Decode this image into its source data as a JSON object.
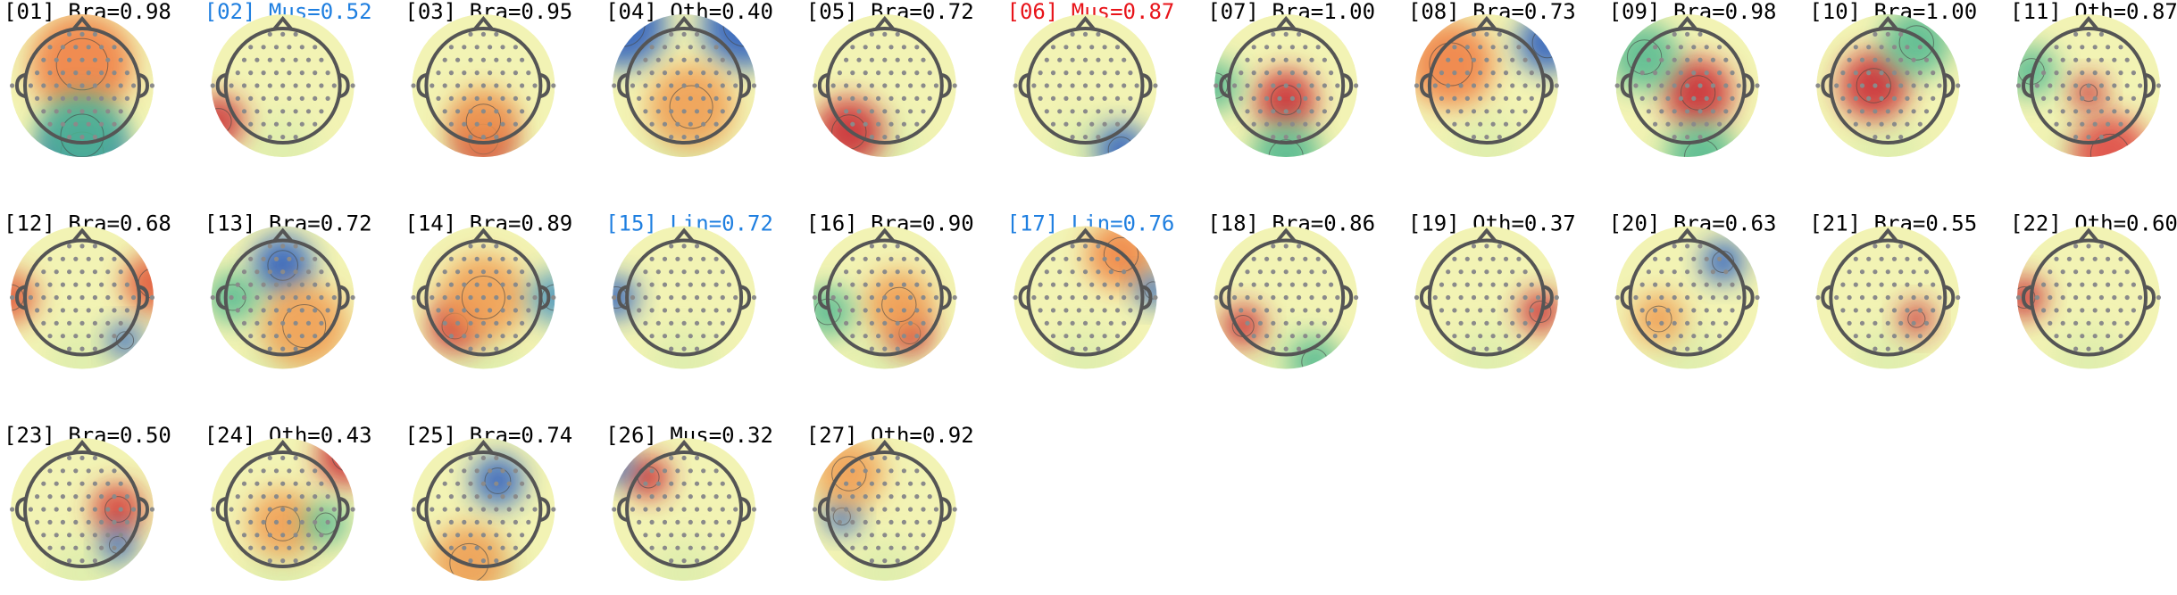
{
  "components": [
    {
      "label": "[01] Bra=0.98",
      "color": "#000000"
    },
    {
      "label": "[02] Mus=0.52",
      "color": "#1f7fe0"
    },
    {
      "label": "[03] Bra=0.95",
      "color": "#000000"
    },
    {
      "label": "[04] Oth=0.40",
      "color": "#000000"
    },
    {
      "label": "[05] Bra=0.72",
      "color": "#000000"
    },
    {
      "label": "[06] Mus=0.87",
      "color": "#e8141a"
    },
    {
      "label": "[07] Bra=1.00",
      "color": "#000000"
    },
    {
      "label": "[08] Bra=0.73",
      "color": "#000000"
    },
    {
      "label": "[09] Bra=0.98",
      "color": "#000000"
    },
    {
      "label": "[10] Bra=1.00",
      "color": "#000000"
    },
    {
      "label": "[11] Oth=0.87",
      "color": "#000000"
    },
    {
      "label": "[12] Bra=0.68",
      "color": "#000000"
    },
    {
      "label": "[13] Bra=0.72",
      "color": "#000000"
    },
    {
      "label": "[14] Bra=0.89",
      "color": "#000000"
    },
    {
      "label": "[15] Lin=0.72",
      "color": "#1f7fe0"
    },
    {
      "label": "[16] Bra=0.90",
      "color": "#000000"
    },
    {
      "label": "[17] Lin=0.76",
      "color": "#1f7fe0"
    },
    {
      "label": "[18] Bra=0.86",
      "color": "#000000"
    },
    {
      "label": "[19] Oth=0.37",
      "color": "#000000"
    },
    {
      "label": "[20] Bra=0.63",
      "color": "#000000"
    },
    {
      "label": "[21] Bra=0.55",
      "color": "#000000"
    },
    {
      "label": "[22] Oth=0.60",
      "color": "#000000"
    },
    {
      "label": "[23] Bra=0.50",
      "color": "#000000"
    },
    {
      "label": "[24] Oth=0.43",
      "color": "#000000"
    },
    {
      "label": "[25] Bra=0.74",
      "color": "#000000"
    },
    {
      "label": "[26] Mus=0.32",
      "color": "#000000"
    },
    {
      "label": "[27] Oth=0.92",
      "color": "#000000"
    }
  ]
}
